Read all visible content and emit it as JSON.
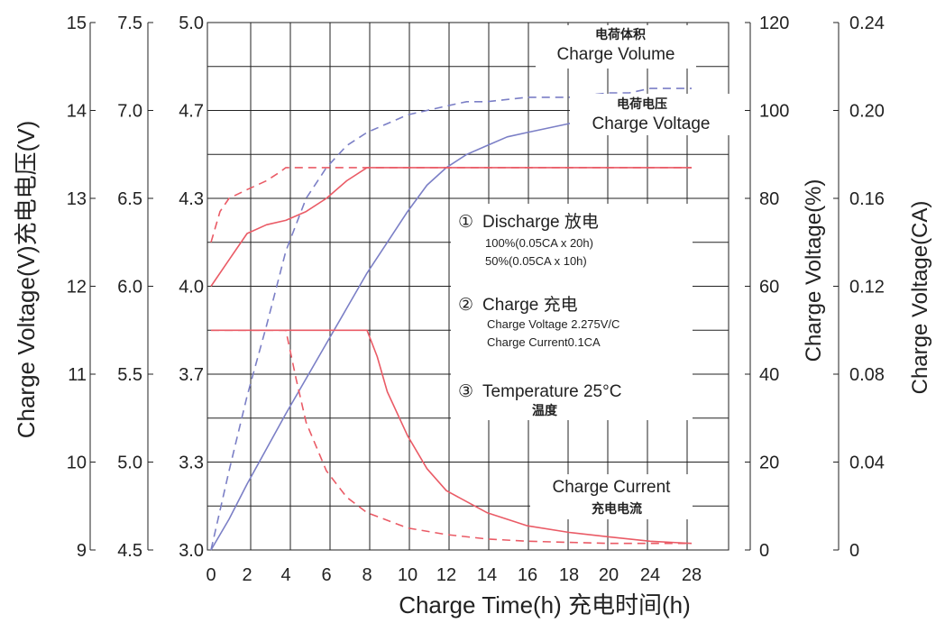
{
  "chart_data": {
    "type": "line",
    "xlabel": "Charge Time(h) 充电时间(h)",
    "x_ticks": [
      "0",
      "2",
      "4",
      "6",
      "8",
      "10",
      "12",
      "14",
      "16",
      "18",
      "20",
      "24",
      "28"
    ],
    "y_axes": {
      "left_outer": {
        "label": "Charge Voltage(V)充电电压(V)",
        "ticks": [
          "9",
          "10",
          "11",
          "12",
          "13",
          "14",
          "15"
        ]
      },
      "left_mid": {
        "ticks": [
          "4.5",
          "5.0",
          "5.5",
          "6.0",
          "6.5",
          "7.0",
          "7.5"
        ]
      },
      "left_inner": {
        "ticks": [
          "3.0",
          "3.3",
          "3.7",
          "4.0",
          "4.3",
          "4.7",
          "5.0"
        ]
      },
      "right_pct": {
        "label": "Charge Voltage(%)",
        "ticks": [
          "0",
          "20",
          "40",
          "60",
          "80",
          "100",
          "120"
        ]
      },
      "right_ca": {
        "label": "Charge Voltage(CA)",
        "ticks": [
          "0",
          "0.04",
          "0.08",
          "0.12",
          "0.16",
          "0.20",
          "0.24"
        ]
      }
    },
    "curve_labels": [
      {
        "key": "volume",
        "en": "Charge Volume",
        "cn": "电荷体积"
      },
      {
        "key": "voltage",
        "en": "Charge Voltage",
        "cn": "电荷电压"
      },
      {
        "key": "current",
        "en": "Charge Current",
        "cn": "充电电流"
      }
    ],
    "legend": {
      "items": [
        {
          "marker": "①",
          "title": "Discharge 放电",
          "lines": [
            "100%(0.05CA x 20h)",
            "50%(0.05CA x 10h)"
          ]
        },
        {
          "marker": "②",
          "title": "Charge  充电",
          "lines": [
            "Charge Voltage 2.275V/C",
            "Charge Current0.1CA"
          ]
        },
        {
          "marker": "③",
          "title": "Temperature 25°C",
          "lines": [
            "温度"
          ]
        }
      ]
    },
    "series": [
      {
        "key": "volume_100",
        "axis": "right_pct",
        "color": "#7b7fc6",
        "dash": false,
        "x": [
          0,
          1,
          2,
          3,
          4,
          5,
          6,
          7,
          8,
          9,
          10,
          11,
          12,
          13,
          14,
          15,
          16,
          18,
          20,
          22,
          24,
          26,
          28
        ],
        "y": [
          0,
          7,
          15,
          23,
          31,
          39,
          47,
          55,
          63,
          70,
          77,
          83,
          87,
          90,
          92,
          94,
          95,
          97,
          99,
          100,
          101,
          102,
          103
        ]
      },
      {
        "key": "volume_50",
        "axis": "right_pct",
        "color": "#7b7fc6",
        "dash": true,
        "x": [
          0,
          1,
          2,
          3,
          4,
          5,
          6,
          7,
          8,
          9,
          10,
          11,
          12,
          13,
          14,
          16,
          18,
          20,
          22,
          24,
          26,
          28
        ],
        "y": [
          0,
          18,
          35,
          51,
          68,
          80,
          87,
          92,
          95,
          97,
          99,
          100,
          101,
          102,
          102,
          103,
          103,
          104,
          104,
          105,
          105,
          105
        ]
      },
      {
        "key": "voltage_100",
        "axis": "left_outer",
        "color": "#ea5b66",
        "dash": false,
        "x": [
          0,
          1,
          2,
          3,
          4,
          5,
          6,
          7,
          8,
          28
        ],
        "y": [
          12.0,
          12.3,
          12.6,
          12.7,
          12.75,
          12.85,
          13.0,
          13.2,
          13.35,
          13.35
        ]
      },
      {
        "key": "voltage_50",
        "axis": "left_outer",
        "color": "#ea5b66",
        "dash": true,
        "x": [
          0,
          0.5,
          1,
          2,
          3,
          3.7,
          4,
          28
        ],
        "y": [
          12.5,
          12.85,
          13.0,
          13.1,
          13.2,
          13.3,
          13.35,
          13.35
        ]
      },
      {
        "key": "current_100",
        "axis": "right_ca",
        "color": "#ea5b66",
        "dash": false,
        "x": [
          0,
          8,
          8.5,
          9,
          10,
          11,
          12,
          14,
          16,
          18,
          20,
          24,
          28
        ],
        "y": [
          0.1,
          0.1,
          0.088,
          0.072,
          0.052,
          0.037,
          0.027,
          0.017,
          0.011,
          0.008,
          0.006,
          0.004,
          0.003
        ]
      },
      {
        "key": "current_50",
        "axis": "right_ca",
        "color": "#ea5b66",
        "dash": true,
        "x": [
          0,
          4,
          4.5,
          5,
          6,
          7,
          8,
          10,
          12,
          14,
          16,
          20,
          24,
          28
        ],
        "y": [
          0.1,
          0.1,
          0.078,
          0.058,
          0.036,
          0.024,
          0.017,
          0.01,
          0.007,
          0.005,
          0.004,
          0.003,
          0.003,
          0.003
        ]
      }
    ]
  }
}
